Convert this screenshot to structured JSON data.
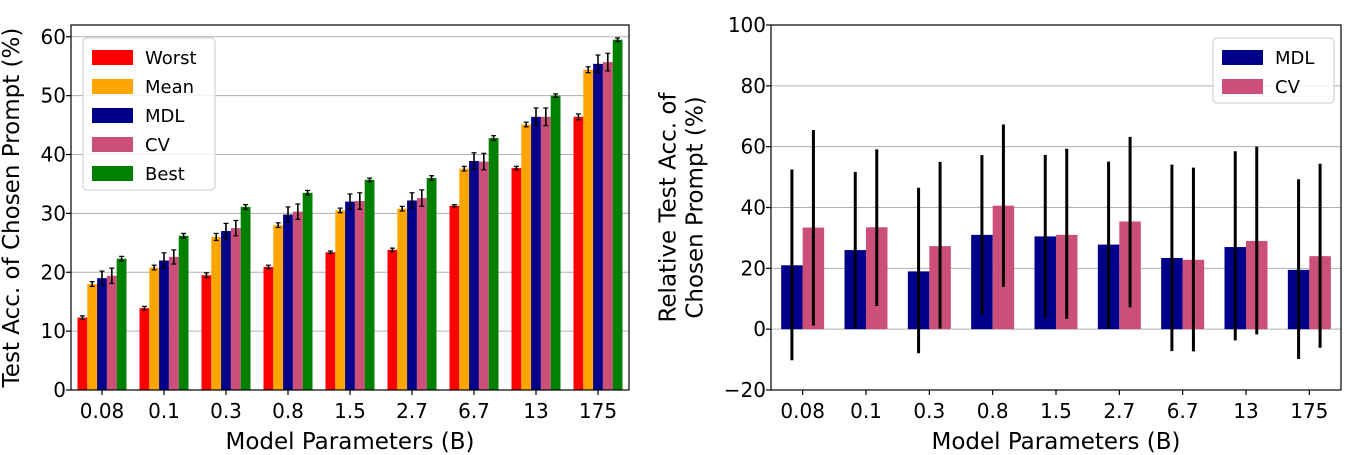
{
  "chart_data": [
    {
      "type": "bar",
      "title": "",
      "xlabel": "Model Parameters (B)",
      "ylabel": "Test Acc. of Chosen Prompt (%)",
      "ylim": [
        0,
        62
      ],
      "yticks": [
        0,
        10,
        20,
        30,
        40,
        50,
        60
      ],
      "grid": true,
      "legend_position": "top-left",
      "categories": [
        "0.08",
        "0.1",
        "0.3",
        "0.8",
        "1.5",
        "2.7",
        "6.7",
        "13",
        "175"
      ],
      "series": [
        {
          "name": "Worst",
          "color": "#ff0000",
          "values": [
            12.3,
            13.9,
            19.5,
            20.9,
            23.4,
            23.8,
            31.3,
            37.7,
            46.4
          ],
          "errors": [
            0.3,
            0.3,
            0.4,
            0.3,
            0.2,
            0.3,
            0.2,
            0.3,
            0.5
          ]
        },
        {
          "name": "Mean",
          "color": "#ffa500",
          "values": [
            18.0,
            20.8,
            26.0,
            28.0,
            30.5,
            30.8,
            37.6,
            45.1,
            54.4
          ],
          "errors": [
            0.4,
            0.4,
            0.6,
            0.4,
            0.4,
            0.4,
            0.4,
            0.4,
            0.5
          ]
        },
        {
          "name": "MDL",
          "color": "#00008b",
          "values": [
            19.0,
            22.0,
            27.0,
            29.8,
            32.0,
            32.2,
            38.9,
            46.4,
            55.4
          ],
          "errors": [
            1.2,
            1.3,
            1.3,
            1.3,
            1.3,
            1.3,
            1.4,
            1.5,
            1.5
          ]
        },
        {
          "name": "CV",
          "color": "#cc4f7a",
          "values": [
            19.4,
            22.6,
            27.5,
            30.3,
            32.1,
            32.6,
            38.8,
            46.4,
            55.7
          ],
          "errors": [
            1.3,
            1.2,
            1.3,
            1.3,
            1.4,
            1.4,
            1.4,
            1.5,
            1.5
          ]
        },
        {
          "name": "Best",
          "color": "#008000",
          "values": [
            22.3,
            26.2,
            31.1,
            33.5,
            35.7,
            36.0,
            42.8,
            50.0,
            59.5
          ],
          "errors": [
            0.4,
            0.4,
            0.4,
            0.4,
            0.3,
            0.4,
            0.4,
            0.3,
            0.3
          ]
        }
      ]
    },
    {
      "type": "bar",
      "title": "",
      "xlabel": "Model Parameters (B)",
      "ylabel": "Relative Test Acc. of\nChosen Prompt (%)",
      "ylim": [
        -20,
        100
      ],
      "yticks": [
        -20,
        0,
        20,
        40,
        60,
        80,
        100
      ],
      "grid": true,
      "legend_position": "top-right",
      "categories": [
        "0.08",
        "0.1",
        "0.3",
        "0.8",
        "1.5",
        "2.7",
        "6.7",
        "13",
        "175"
      ],
      "series": [
        {
          "name": "MDL",
          "color": "#00008b",
          "values": [
            21.0,
            26.0,
            19.0,
            31.0,
            30.5,
            27.8,
            23.4,
            27.0,
            19.5
          ],
          "err_low": [
            -10.2,
            0.3,
            -7.9,
            4.7,
            3.6,
            0.3,
            -7.2,
            -3.7,
            -9.8
          ],
          "err_high": [
            52.5,
            51.7,
            46.5,
            57.2,
            57.3,
            55.1,
            54.1,
            58.5,
            49.3
          ]
        },
        {
          "name": "CV",
          "color": "#cc4f7a",
          "values": [
            33.4,
            33.5,
            27.3,
            40.6,
            31.0,
            35.4,
            22.8,
            29.0,
            24.0
          ],
          "err_low": [
            1.2,
            7.6,
            0.2,
            13.9,
            3.4,
            7.2,
            -7.3,
            -1.7,
            -6.1
          ],
          "err_high": [
            65.5,
            59.1,
            55.0,
            67.3,
            59.3,
            63.2,
            53.1,
            60.0,
            54.4
          ]
        }
      ]
    }
  ]
}
